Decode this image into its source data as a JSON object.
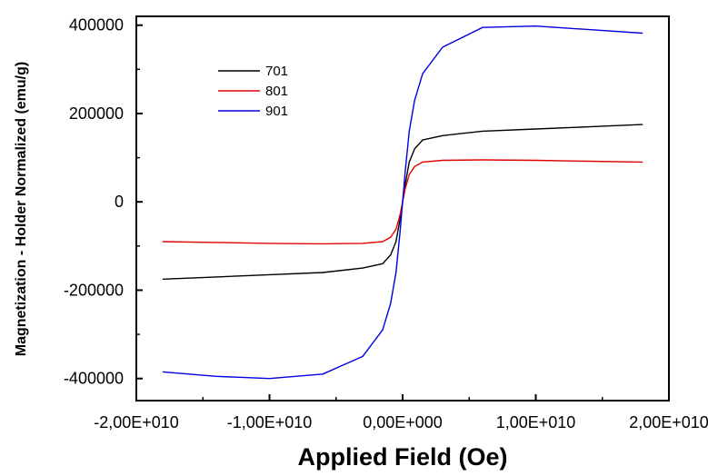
{
  "chart_data": {
    "type": "line",
    "xlabel": "Applied Field (Oe)",
    "ylabel": "Magnetization - Holder Normalized (emu/g)",
    "xlim": [
      -20000000000,
      20000000000
    ],
    "ylim": [
      -450000,
      420000
    ],
    "x_ticks": [
      -20000000000,
      -10000000000,
      0,
      10000000000,
      20000000000
    ],
    "x_tick_labels": [
      "-2,00E+010",
      "-1,00E+010",
      "0,00E+000",
      "1,00E+010",
      "2,00E+010"
    ],
    "y_ticks": [
      -400000,
      -200000,
      0,
      200000,
      400000
    ],
    "y_tick_labels": [
      "-400000",
      "-200000",
      "0",
      "200000",
      "400000"
    ],
    "legend_position": "top-left",
    "series": [
      {
        "name": "701",
        "color": "#000000",
        "x": [
          -18000000000,
          -14000000000,
          -10000000000,
          -6000000000,
          -3000000000,
          -1500000000,
          -900000000,
          -500000000,
          -200000000,
          0,
          200000000,
          500000000,
          900000000,
          1500000000,
          3000000000,
          6000000000,
          10000000000,
          14000000000,
          18000000000
        ],
        "values": [
          -175000,
          -170000,
          -165000,
          -160000,
          -150000,
          -140000,
          -120000,
          -90000,
          -40000,
          0,
          40000,
          90000,
          120000,
          140000,
          150000,
          160000,
          165000,
          170000,
          175000
        ]
      },
      {
        "name": "801",
        "color": "#e00000",
        "x": [
          -18000000000,
          -14000000000,
          -10000000000,
          -6000000000,
          -3000000000,
          -1500000000,
          -900000000,
          -500000000,
          -200000000,
          0,
          200000000,
          500000000,
          900000000,
          1500000000,
          3000000000,
          6000000000,
          10000000000,
          14000000000,
          18000000000
        ],
        "values": [
          -90000,
          -92000,
          -94000,
          -95000,
          -94000,
          -90000,
          -80000,
          -62000,
          -30000,
          0,
          30000,
          62000,
          80000,
          90000,
          94000,
          95000,
          94000,
          92000,
          90000
        ]
      },
      {
        "name": "901",
        "color": "#0000e0",
        "x": [
          -18000000000,
          -14000000000,
          -10000000000,
          -6000000000,
          -3000000000,
          -1500000000,
          -900000000,
          -500000000,
          -200000000,
          0,
          200000000,
          500000000,
          900000000,
          1500000000,
          3000000000,
          6000000000,
          10000000000,
          14000000000,
          18000000000
        ],
        "values": [
          -385000,
          -395000,
          -400000,
          -390000,
          -350000,
          -290000,
          -230000,
          -160000,
          -70000,
          0,
          70000,
          160000,
          230000,
          290000,
          350000,
          395000,
          398000,
          390000,
          382000
        ]
      }
    ]
  }
}
